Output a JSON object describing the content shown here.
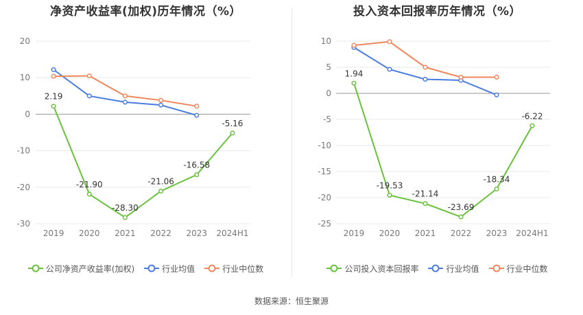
{
  "source": "数据来源：恒生聚源",
  "chart_data": [
    {
      "type": "line",
      "title": "净资产收益率(加权)历年情况（%）",
      "categories": [
        "2019",
        "2020",
        "2021",
        "2022",
        "2023",
        "2024H1"
      ],
      "ylim": [
        -30,
        20
      ],
      "yticks": [
        20,
        10,
        0,
        -10,
        -20,
        -30
      ],
      "grid": true,
      "legend_position": "bottom",
      "series": [
        {
          "name": "公司净资产收益率(加权)",
          "color": "#67c23a",
          "values": [
            2.19,
            -21.9,
            -28.3,
            -21.06,
            -16.58,
            -5.16
          ],
          "labels": [
            "2.19",
            "-21.90",
            "-28.30",
            "-21.06",
            "-16.58",
            "-5.16"
          ]
        },
        {
          "name": "行业均值",
          "color": "#4a7be0",
          "values": [
            12.2,
            5.0,
            3.3,
            2.5,
            -0.3,
            null
          ]
        },
        {
          "name": "行业中位数",
          "color": "#f0875a",
          "values": [
            10.4,
            10.5,
            5.0,
            3.8,
            2.2,
            null
          ]
        }
      ]
    },
    {
      "type": "line",
      "title": "投入资本回报率历年情况（%）",
      "categories": [
        "2019",
        "2020",
        "2021",
        "2022",
        "2023",
        "2024H1"
      ],
      "ylim": [
        -25,
        10
      ],
      "yticks": [
        10,
        5,
        0,
        -5,
        -10,
        -15,
        -20,
        -25
      ],
      "grid": true,
      "legend_position": "bottom",
      "series": [
        {
          "name": "公司投入资本回报率",
          "color": "#67c23a",
          "values": [
            1.94,
            -19.53,
            -21.14,
            -23.69,
            -18.34,
            -6.22
          ],
          "labels": [
            "1.94",
            "-19.53",
            "-21.14",
            "-23.69",
            "-18.34",
            "-6.22"
          ]
        },
        {
          "name": "行业均值",
          "color": "#4a7be0",
          "values": [
            8.8,
            4.6,
            2.7,
            2.5,
            -0.3,
            null
          ]
        },
        {
          "name": "行业中位数",
          "color": "#f0875a",
          "values": [
            9.2,
            9.9,
            5.0,
            3.1,
            3.1,
            null
          ]
        }
      ]
    }
  ]
}
